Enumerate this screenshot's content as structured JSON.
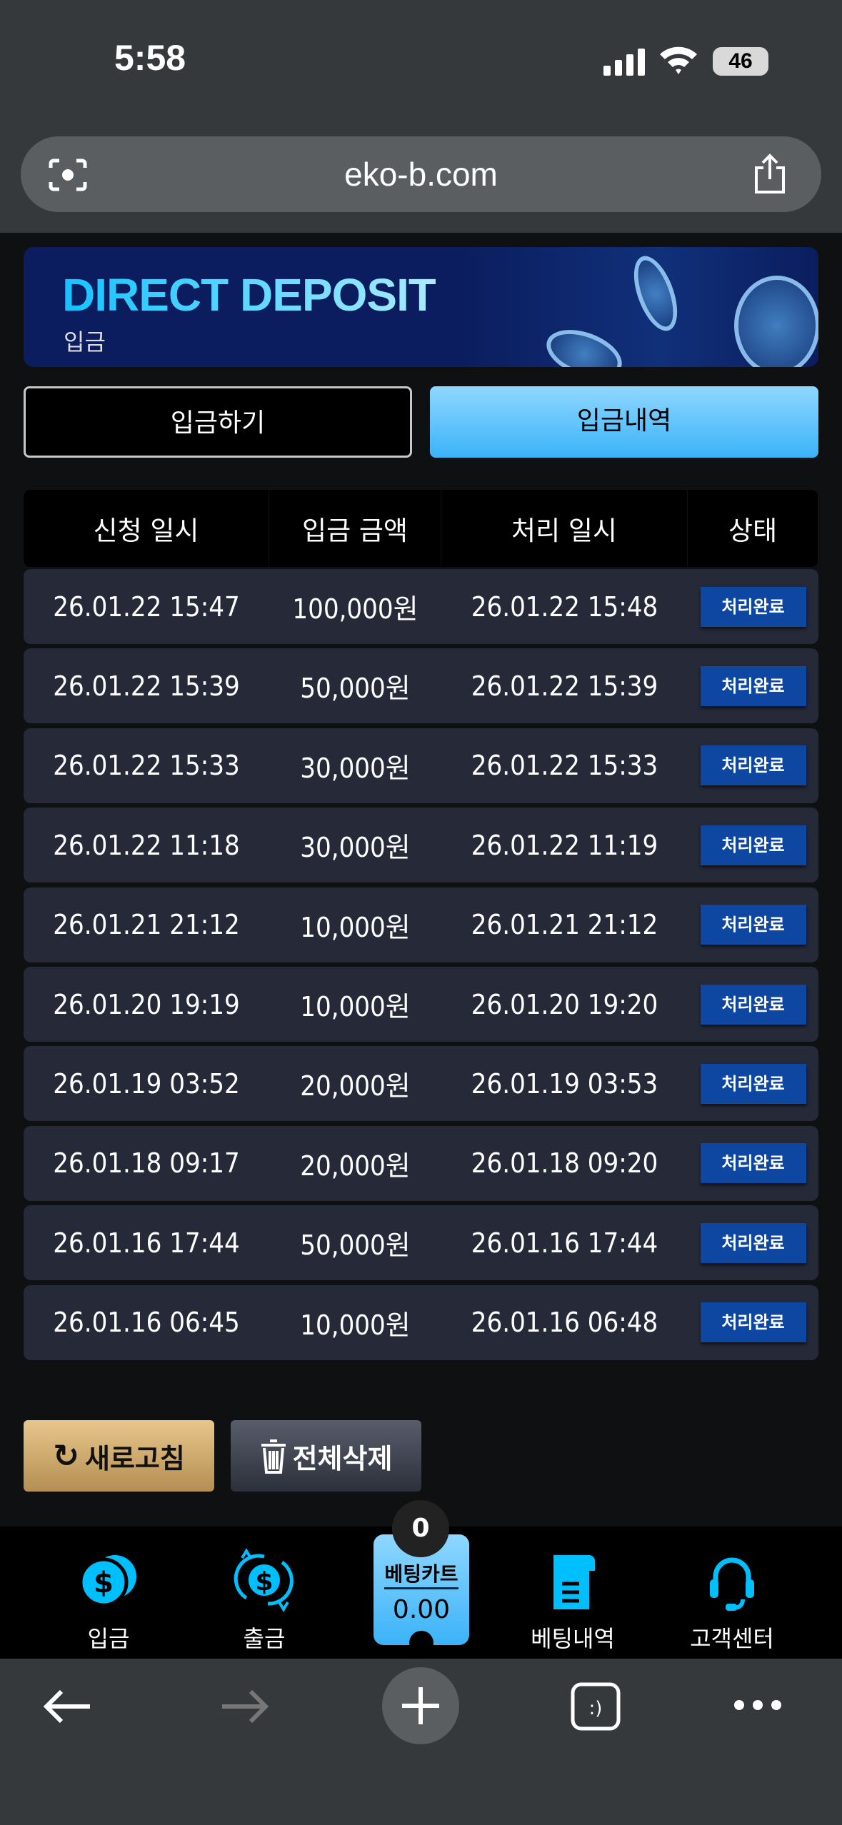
{
  "status_bar": {
    "time": "5:58",
    "battery": "46"
  },
  "browser": {
    "url": "eko-b.com",
    "icons": [
      "camera-scan-icon",
      "share-icon",
      "back-icon",
      "forward-icon",
      "new-tab-icon",
      "tabs-icon",
      "more-icon"
    ]
  },
  "banner": {
    "title": "DIRECT DEPOSIT",
    "subtitle": "입금"
  },
  "tabs": [
    {
      "label": "입금하기",
      "active": false
    },
    {
      "label": "입금내역",
      "active": true
    }
  ],
  "table": {
    "headers": [
      "신청 일시",
      "입금 금액",
      "처리 일시",
      "상태"
    ],
    "rows": [
      [
        "26.01.22 15:47",
        "100,000원",
        "26.01.22 15:48",
        "처리완료"
      ],
      [
        "26.01.22 15:39",
        "50,000원",
        "26.01.22 15:39",
        "처리완료"
      ],
      [
        "26.01.22 15:33",
        "30,000원",
        "26.01.22 15:33",
        "처리완료"
      ],
      [
        "26.01.22 11:18",
        "30,000원",
        "26.01.22 11:19",
        "처리완료"
      ],
      [
        "26.01.21 21:12",
        "10,000원",
        "26.01.21 21:12",
        "처리완료"
      ],
      [
        "26.01.20 19:19",
        "10,000원",
        "26.01.20 19:20",
        "처리완료"
      ],
      [
        "26.01.19 03:52",
        "20,000원",
        "26.01.19 03:53",
        "처리완료"
      ],
      [
        "26.01.18 09:17",
        "20,000원",
        "26.01.18 09:20",
        "처리완료"
      ],
      [
        "26.01.16 17:44",
        "50,000원",
        "26.01.16 17:44",
        "처리완료"
      ],
      [
        "26.01.16 06:45",
        "10,000원",
        "26.01.16 06:48",
        "처리완료"
      ]
    ]
  },
  "actions": {
    "refresh": "새로고침",
    "delete_all": "전체삭제"
  },
  "bottom_nav": {
    "deposit": "입금",
    "withdraw": "출금",
    "bet_cart": "베팅카트",
    "bet_cart_value": "0.00",
    "bet_cart_count": "0",
    "bet_history": "베팅내역",
    "support": "고객센터"
  },
  "colors": {
    "accent": "#3bb3f8",
    "status_badge": "#0d47a1",
    "row_bg": "#262a38",
    "nav_icon": "#00bfff"
  }
}
